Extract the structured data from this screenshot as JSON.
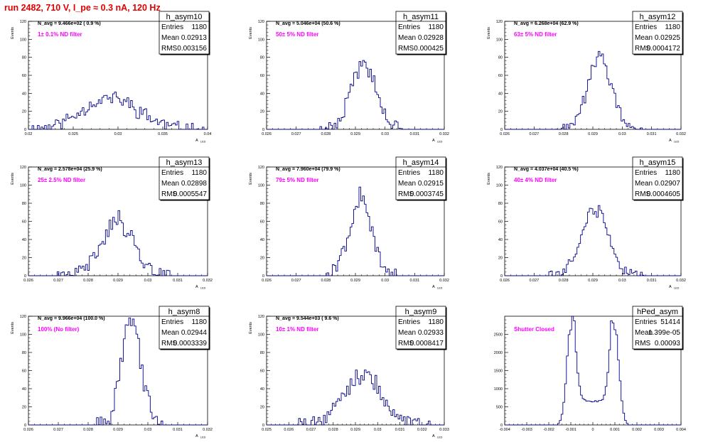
{
  "page": {
    "title": "run 2482,   710 V, I_pe ≈ 0.3 nA, 120 Hz"
  },
  "chart_data": [
    {
      "type": "histogram",
      "name": "h_asym10",
      "xlim": [
        0.02,
        0.04
      ],
      "ylim": [
        0,
        120
      ],
      "xticks": [
        "0.02",
        "0.025",
        "0.03",
        "0.035",
        "0.04"
      ],
      "yticks": [
        "0",
        "20",
        "40",
        "60",
        "80",
        "100",
        "120"
      ],
      "ylabel": "Events",
      "xlabel": "A",
      "xlabel_sub": "LED",
      "navg": "N_avg = 9.466e+02 ( 0.9 %)",
      "label": "1± 0.1% ND filter",
      "stats": {
        "Entries": "1180",
        "Mean": "0.02913",
        "RMS": "0.003156"
      },
      "hist": {
        "mean": 0.02913,
        "rms": 0.003156,
        "peak": 35,
        "n": 100,
        "smooth": 0.35,
        "seed": 11
      }
    },
    {
      "type": "histogram",
      "name": "h_asym11",
      "xlim": [
        0.026,
        0.032
      ],
      "ylim": [
        0,
        120
      ],
      "xticks": [
        "0.026",
        "0.027",
        "0.028",
        "0.029",
        "0.03",
        "0.031",
        "0.032"
      ],
      "yticks": [
        "0",
        "20",
        "40",
        "60",
        "80",
        "100",
        "120"
      ],
      "ylabel": "Events",
      "xlabel": "A",
      "xlabel_sub": "LED",
      "navg": "N_avg = 5.046e+04 (50.6 %)",
      "label": "50± 5% ND filter",
      "stats": {
        "Entries": "1180",
        "Mean": "0.02928",
        "RMS": "0.000425"
      },
      "hist": {
        "mean": 0.02928,
        "rms": 0.000425,
        "peak": 75,
        "n": 100,
        "smooth": 0.15,
        "seed": 21
      }
    },
    {
      "type": "histogram",
      "name": "h_asym12",
      "xlim": [
        0.026,
        0.032
      ],
      "ylim": [
        0,
        120
      ],
      "xticks": [
        "0.026",
        "0.027",
        "0.028",
        "0.029",
        "0.03",
        "0.031",
        "0.032"
      ],
      "yticks": [
        "0",
        "20",
        "40",
        "60",
        "80",
        "100",
        "120"
      ],
      "ylabel": "Events",
      "xlabel": "A",
      "xlabel_sub": "LED",
      "navg": "N_avg = 6.268e+04 (62.9 %)",
      "label": "63± 5% ND filter",
      "stats": {
        "Entries": "1180",
        "Mean": "0.02925",
        "RMS": "0.0004172"
      },
      "hist": {
        "mean": 0.02925,
        "rms": 0.0004172,
        "peak": 80,
        "n": 100,
        "smooth": 0.15,
        "seed": 31
      }
    },
    {
      "type": "histogram",
      "name": "h_asym13",
      "xlim": [
        0.026,
        0.032
      ],
      "ylim": [
        0,
        120
      ],
      "xticks": [
        "0.026",
        "0.027",
        "0.028",
        "0.029",
        "0.03",
        "0.031",
        "0.032"
      ],
      "yticks": [
        "0",
        "20",
        "40",
        "60",
        "80",
        "100",
        "120"
      ],
      "ylabel": "Events",
      "xlabel": "A",
      "xlabel_sub": "LED",
      "navg": "N_avg = 2.578e+04 (25.9 %)",
      "label": "25± 2.5% ND filter",
      "stats": {
        "Entries": "1180",
        "Mean": "0.02898",
        "RMS": "0.0005547"
      },
      "hist": {
        "mean": 0.02898,
        "rms": 0.0005547,
        "peak": 60,
        "n": 100,
        "smooth": 0.2,
        "seed": 41
      }
    },
    {
      "type": "histogram",
      "name": "h_asym14",
      "xlim": [
        0.026,
        0.032
      ],
      "ylim": [
        0,
        120
      ],
      "xticks": [
        "0.026",
        "0.027",
        "0.028",
        "0.029",
        "0.03",
        "0.031",
        "0.032"
      ],
      "yticks": [
        "0",
        "20",
        "40",
        "60",
        "80",
        "100",
        "120"
      ],
      "ylabel": "Events",
      "xlabel": "A",
      "xlabel_sub": "LED",
      "navg": "N_avg = 7.960e+04 (79.9 %)",
      "label": "79± 5% ND filter",
      "stats": {
        "Entries": "1180",
        "Mean": "0.02915",
        "RMS": "0.0003745"
      },
      "hist": {
        "mean": 0.02915,
        "rms": 0.0003745,
        "peak": 85,
        "n": 100,
        "smooth": 0.15,
        "seed": 51
      }
    },
    {
      "type": "histogram",
      "name": "h_asym15",
      "xlim": [
        0.026,
        0.032
      ],
      "ylim": [
        0,
        120
      ],
      "xticks": [
        "0.026",
        "0.027",
        "0.028",
        "0.029",
        "0.03",
        "0.031",
        "0.032"
      ],
      "yticks": [
        "0",
        "20",
        "40",
        "60",
        "80",
        "100",
        "120"
      ],
      "ylabel": "Events",
      "xlabel": "A",
      "xlabel_sub": "LED",
      "navg": "N_avg = 4.037e+04 (40.5 %)",
      "label": "40± 4% ND filter",
      "stats": {
        "Entries": "1180",
        "Mean": "0.02907",
        "RMS": "0.0004605"
      },
      "hist": {
        "mean": 0.02907,
        "rms": 0.0004605,
        "peak": 72,
        "n": 100,
        "smooth": 0.15,
        "seed": 61
      }
    },
    {
      "type": "histogram",
      "name": "h_asym8",
      "xlim": [
        0.026,
        0.032
      ],
      "ylim": [
        0,
        120
      ],
      "xticks": [
        "0.026",
        "0.027",
        "0.028",
        "0.029",
        "0.03",
        "0.031",
        "0.032"
      ],
      "yticks": [
        "0",
        "20",
        "40",
        "60",
        "80",
        "100",
        "120"
      ],
      "ylabel": "Events",
      "xlabel": "A",
      "xlabel_sub": "LED",
      "navg": "N_avg = 9.966e+04 (100.0 %)",
      "label": "100% (No filter)",
      "stats": {
        "Entries": "1180",
        "Mean": "0.02944",
        "RMS": "0.0003339"
      },
      "hist": {
        "mean": 0.02944,
        "rms": 0.0003339,
        "peak": 115,
        "n": 100,
        "smooth": 0.15,
        "seed": 71
      }
    },
    {
      "type": "histogram",
      "name": "h_asym9",
      "xlim": [
        0.025,
        0.033
      ],
      "ylim": [
        0,
        120
      ],
      "xticks": [
        "0.025",
        "0.026",
        "0.027",
        "0.028",
        "0.029",
        "0.03",
        "0.031",
        "0.032",
        "0.033"
      ],
      "yticks": [
        "0",
        "20",
        "40",
        "60",
        "80",
        "100",
        "120"
      ],
      "ylabel": "Events",
      "xlabel": "A",
      "xlabel_sub": "LED",
      "navg": "N_avg = 9.544e+03 ( 9.6 %)",
      "label": "10± 1% ND filter",
      "stats": {
        "Entries": "1180",
        "Mean": "0.02933",
        "RMS": "0.0008417"
      },
      "hist": {
        "mean": 0.02933,
        "rms": 0.0008417,
        "peak": 55,
        "n": 100,
        "smooth": 0.25,
        "seed": 81
      }
    },
    {
      "type": "histogram",
      "name": "hPed_asym",
      "xlim": [
        -0.004,
        0.004
      ],
      "ylim": [
        0,
        3000
      ],
      "xticks": [
        "-0.004",
        "-0.003",
        "-0.002",
        "-0.001",
        "0",
        "0.001",
        "0.002",
        "0.003",
        "0.004"
      ],
      "yticks": [
        "0",
        "500",
        "1000",
        "1500",
        "2000",
        "2500"
      ],
      "ylabel": "",
      "xlabel": "",
      "xlabel_sub": "",
      "navg": "",
      "label": "Shutter Closed",
      "stats": {
        "Entries": "51414",
        "Mean": "1.399e-05",
        "RMS": "0.00093"
      },
      "hist": {
        "mode": "bimodal",
        "peaks": [
          -0.00098,
          0.00098
        ],
        "width": 0.0002,
        "peak": 2800,
        "floor": 650,
        "n": 100,
        "seed": 91
      }
    }
  ]
}
